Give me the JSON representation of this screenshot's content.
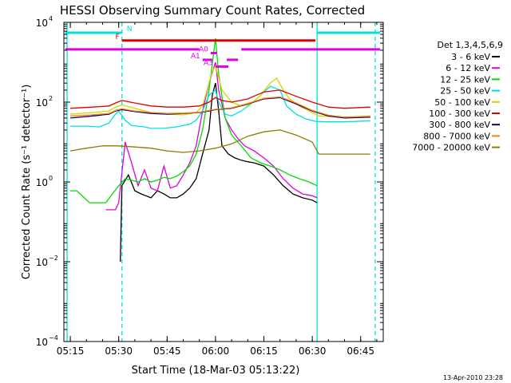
{
  "chart_data": {
    "type": "line",
    "title": "HESSI Observing Summary Count Rates, Corrected",
    "xlabel": "Start Time (18-Mar-03 05:13:22)",
    "ylabel": "Corrected Count Rate (s⁻¹ detector⁻¹)",
    "ylog": true,
    "xlim": [
      "05:13",
      "06:52"
    ],
    "ylim": [
      0.0001,
      10000
    ],
    "x_ticks": [
      "05:15",
      "05:30",
      "05:45",
      "06:00",
      "06:15",
      "06:30",
      "06:45"
    ],
    "y_ticks": [
      {
        "value": 0.0001,
        "base": "10",
        "exp": "−4"
      },
      {
        "value": 0.01,
        "base": "10",
        "exp": "−2"
      },
      {
        "value": 1,
        "base": "10",
        "exp": "0"
      },
      {
        "value": 100,
        "base": "10",
        "exp": "2"
      },
      {
        "value": 10000,
        "base": "10",
        "exp": "4"
      }
    ],
    "grid": false,
    "legend_position": "right",
    "legend_header": "Det 1,3,4,5,6,9",
    "series": [
      {
        "name": "3 - 6 keV",
        "color": "#000000",
        "x": [
          "05:30:30",
          "05:31",
          "05:33",
          "05:35",
          "05:37",
          "05:40",
          "05:42",
          "05:44",
          "05:46",
          "05:48",
          "05:50",
          "05:52",
          "05:54",
          "05:56",
          "05:58",
          "05:59",
          "06:00",
          "06:01",
          "06:02",
          "06:04",
          "06:06",
          "06:08",
          "06:10",
          "06:12",
          "06:15",
          "06:18",
          "06:21",
          "06:24",
          "06:27",
          "06:30",
          "06:31:30"
        ],
        "values": [
          0.01,
          0.8,
          1.5,
          0.6,
          0.5,
          0.4,
          0.6,
          0.5,
          0.4,
          0.4,
          0.5,
          0.7,
          1.2,
          5,
          20,
          150,
          300,
          60,
          8,
          5,
          4,
          3.5,
          3.2,
          3,
          2.5,
          1.5,
          0.8,
          0.5,
          0.4,
          0.35,
          0.3
        ]
      },
      {
        "name": "6 - 12 keV",
        "color": "#e000e0",
        "x": [
          "05:26",
          "05:27",
          "05:29",
          "05:30",
          "05:32",
          "05:34",
          "05:36",
          "05:38",
          "05:40",
          "05:42",
          "05:44",
          "05:46",
          "05:48",
          "05:50",
          "05:52",
          "05:54",
          "05:56",
          "05:58",
          "06:00",
          "06:01",
          "06:03",
          "06:05",
          "06:07",
          "06:09",
          "06:12",
          "06:15",
          "06:18",
          "06:21",
          "06:24",
          "06:27",
          "06:30",
          "06:31:30"
        ],
        "values": [
          0.2,
          0.2,
          0.2,
          0.3,
          10,
          3,
          0.8,
          2,
          0.7,
          0.6,
          2.5,
          0.7,
          0.8,
          1.5,
          3,
          8,
          60,
          300,
          1000,
          200,
          40,
          20,
          12,
          8,
          6,
          4,
          2.5,
          1.2,
          0.7,
          0.5,
          0.45,
          0.4
        ]
      },
      {
        "name": "12 - 25 keV",
        "color": "#00dd00",
        "x": [
          "05:15",
          "05:17",
          "05:21",
          "05:26",
          "05:28",
          "05:30",
          "05:32",
          "05:34",
          "05:36",
          "05:38",
          "05:40",
          "05:42",
          "05:44",
          "05:46",
          "05:48",
          "05:50",
          "05:52",
          "05:54",
          "05:56",
          "05:58",
          "06:00",
          "06:01",
          "06:03",
          "06:05",
          "06:08",
          "06:11",
          "06:14",
          "06:17",
          "06:20",
          "06:23",
          "06:26",
          "06:29",
          "06:31:30"
        ],
        "values": [
          0.6,
          0.6,
          0.3,
          0.3,
          0.5,
          0.8,
          1.2,
          1.1,
          1,
          1.2,
          1,
          1.1,
          1.3,
          1.2,
          1.4,
          1.8,
          2.5,
          5,
          20,
          200,
          4000,
          500,
          40,
          15,
          8,
          4,
          3,
          2.5,
          2,
          1.5,
          1.2,
          1,
          0.8
        ]
      },
      {
        "name": "25 - 50 keV",
        "color": "#00e0e0",
        "x": [
          "05:15",
          "05:20",
          "05:24",
          "05:27",
          "05:29",
          "05:30",
          "05:32",
          "05:34",
          "05:36",
          "05:38",
          "05:40",
          "05:42",
          "05:44",
          "05:46",
          "05:48",
          "05:50",
          "05:52",
          "05:54",
          "05:56",
          "05:58",
          "06:00",
          "06:01",
          "06:03",
          "06:05",
          "06:08",
          "06:11",
          "06:14",
          "06:17",
          "06:20",
          "06:22",
          "06:25",
          "06:28",
          "06:31",
          "06:34",
          "06:40",
          "06:48"
        ],
        "values": [
          25,
          25,
          24,
          30,
          50,
          60,
          35,
          26,
          25,
          24,
          22,
          22,
          22,
          23,
          24,
          26,
          28,
          35,
          60,
          150,
          200,
          100,
          50,
          45,
          60,
          90,
          150,
          250,
          200,
          80,
          50,
          38,
          33,
          32,
          32,
          34
        ]
      },
      {
        "name": "50 - 100 keV",
        "color": "#d4d400",
        "x": [
          "05:15",
          "05:22",
          "05:27",
          "05:29",
          "05:31",
          "05:35",
          "05:40",
          "05:45",
          "05:50",
          "05:54",
          "05:56",
          "05:58",
          "05:59",
          "06:00",
          "06:02",
          "06:05",
          "06:08",
          "06:11",
          "06:14",
          "06:17",
          "06:19",
          "06:21",
          "06:23",
          "06:26",
          "06:29",
          "06:32",
          "06:40",
          "06:48"
        ],
        "values": [
          50,
          55,
          60,
          75,
          85,
          70,
          55,
          50,
          48,
          55,
          80,
          300,
          600,
          800,
          200,
          100,
          80,
          90,
          150,
          300,
          400,
          200,
          120,
          80,
          60,
          45,
          42,
          45
        ]
      },
      {
        "name": "100 - 300 keV",
        "color": "#dd0000",
        "x": [
          "05:15",
          "05:22",
          "05:27",
          "05:29",
          "05:31",
          "05:35",
          "05:40",
          "05:45",
          "05:50",
          "05:55",
          "05:58",
          "06:00",
          "06:02",
          "06:05",
          "06:10",
          "06:15",
          "06:20",
          "06:25",
          "06:30",
          "06:35",
          "06:40",
          "06:48"
        ],
        "values": [
          70,
          75,
          80,
          95,
          110,
          95,
          80,
          75,
          75,
          80,
          100,
          130,
          110,
          100,
          120,
          180,
          200,
          140,
          100,
          75,
          70,
          75
        ]
      },
      {
        "name": "300 - 800 keV",
        "color": "#000080",
        "x": [
          "05:15",
          "05:22",
          "05:27",
          "05:29",
          "05:31",
          "05:35",
          "05:40",
          "05:45",
          "05:50",
          "05:55",
          "05:58",
          "06:00",
          "06:05",
          "06:10",
          "06:15",
          "06:20",
          "06:25",
          "06:30",
          "06:35",
          "06:40",
          "06:48"
        ],
        "values": [
          40,
          45,
          50,
          60,
          65,
          58,
          52,
          50,
          52,
          55,
          60,
          65,
          70,
          90,
          120,
          130,
          90,
          60,
          45,
          40,
          42
        ]
      },
      {
        "name": "800 - 7000 keV",
        "color": "#ff8000",
        "x": [
          "05:15",
          "05:22",
          "05:27",
          "05:29",
          "05:31",
          "05:35",
          "05:40",
          "05:45",
          "05:50",
          "05:55",
          "05:58",
          "06:00",
          "06:05",
          "06:10",
          "06:15",
          "06:20",
          "06:25",
          "06:30",
          "06:35",
          "06:40",
          "06:48"
        ],
        "values": [
          45,
          48,
          52,
          62,
          68,
          60,
          55,
          52,
          53,
          56,
          62,
          66,
          72,
          92,
          125,
          135,
          95,
          62,
          47,
          42,
          44
        ]
      },
      {
        "name": "7000 - 20000 keV",
        "color": "#8b7d00",
        "x": [
          "05:15",
          "05:20",
          "05:25",
          "05:30",
          "05:35",
          "05:40",
          "05:45",
          "05:50",
          "05:55",
          "06:00",
          "06:05",
          "06:10",
          "06:15",
          "06:20",
          "06:25",
          "06:30",
          "06:32",
          "06:40",
          "06:48"
        ],
        "values": [
          6,
          7,
          8,
          8,
          7.5,
          7,
          6,
          5.5,
          6,
          7,
          9,
          14,
          18,
          20,
          15,
          10,
          5,
          5,
          5
        ]
      }
    ],
    "annotations": [
      {
        "label": "N",
        "color": "#00e0e0",
        "segments": [
          [
            "05:13:30",
            "05:31"
          ],
          [
            "06:31:30",
            "06:51"
          ]
        ],
        "level": 5500
      },
      {
        "label": "F",
        "color": "#dd0000",
        "segments": [
          [
            "05:31",
            "06:31"
          ]
        ],
        "level": 3500
      },
      {
        "label": "",
        "color": "#e000e0",
        "segments": [
          [
            "05:13:30",
            "05:55"
          ],
          [
            "06:08",
            "06:51"
          ]
        ],
        "level": 2100
      },
      {
        "label": "A0",
        "color": "#e000e0",
        "segments": [
          [
            "05:58:30",
            "06:00:30"
          ]
        ],
        "level": 1700
      },
      {
        "label": "A1",
        "color": "#e000e0",
        "segments": [
          [
            "05:56",
            "05:59"
          ],
          [
            "06:03:30",
            "06:07"
          ]
        ],
        "level": 1150
      },
      {
        "label": "A3",
        "color": "#e000e0",
        "segments": [
          [
            "06:00",
            "06:04"
          ]
        ],
        "level": 780
      }
    ],
    "vlines": [
      {
        "time": "05:14",
        "color": "#00e0e0",
        "style": "solid"
      },
      {
        "time": "05:31:00",
        "color": "#00e0e0",
        "style": "dashed"
      },
      {
        "time": "06:31:30",
        "color": "#00e0e0",
        "style": "solid"
      },
      {
        "time": "06:49:30",
        "color": "#00e0e0",
        "style": "dashed"
      }
    ],
    "footer_timestamp": "13-Apr-2010 23:28"
  }
}
